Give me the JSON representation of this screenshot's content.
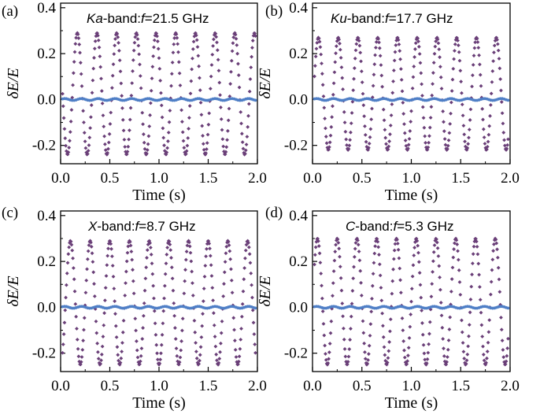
{
  "colors": {
    "oscillation": "#6a3f78",
    "baseline": "#4f7fc6"
  },
  "chart_data": [
    {
      "panel": "(a)",
      "type": "scatter",
      "title_prefix": "Ka",
      "title_band": "-band:",
      "title_var": "f",
      "title_value": "=21.5 GHz",
      "xlabel": "Time (s)",
      "ylabel": "δE/E",
      "xlim": [
        0,
        2.0
      ],
      "ylim": [
        -0.28,
        0.42
      ],
      "xticks": [
        "0.0",
        "0.5",
        "1.0",
        "1.5",
        "2.0"
      ],
      "yticks": [
        "-0.2",
        "0.0",
        "0.2",
        "0.4"
      ],
      "ytick_values": [
        -0.2,
        0.0,
        0.2,
        0.4
      ],
      "series": [
        {
          "kind": "oscillation",
          "amplitude_max": 0.29,
          "amplitude_min": -0.24,
          "period": 0.2,
          "first_peak": 0.17,
          "t_start": 0.02,
          "t_end": 1.98
        },
        {
          "kind": "baseline",
          "level": 0.0,
          "t_start": 0.02,
          "t_end": 1.98
        }
      ]
    },
    {
      "panel": "(b)",
      "type": "scatter",
      "title_prefix": "Ku",
      "title_band": "-band:",
      "title_var": "f",
      "title_value": "=17.7 GHz",
      "xlabel": "Time (s)",
      "ylabel": "δE/E",
      "xlim": [
        0,
        2.0
      ],
      "ylim": [
        -0.28,
        0.42
      ],
      "xticks": [
        "0.0",
        "0.5",
        "1.0",
        "1.5",
        "2.0"
      ],
      "yticks": [
        "-0.2",
        "0.0",
        "0.2",
        "0.4"
      ],
      "ytick_values": [
        -0.2,
        0.0,
        0.2,
        0.4
      ],
      "series": [
        {
          "kind": "oscillation",
          "amplitude_max": 0.27,
          "amplitude_min": -0.22,
          "period": 0.2,
          "first_peak": 0.06,
          "t_start": 0.02,
          "t_end": 1.98
        },
        {
          "kind": "baseline",
          "level": 0.0,
          "t_start": 0.02,
          "t_end": 1.98
        }
      ]
    },
    {
      "panel": "(c)",
      "type": "scatter",
      "title_prefix": "X",
      "title_band": "-band:",
      "title_var": "f",
      "title_value": "=8.7 GHz",
      "xlabel": "Time (s)",
      "ylabel": "δE/E",
      "xlim": [
        0,
        2.0
      ],
      "ylim": [
        -0.28,
        0.42
      ],
      "xticks": [
        "0.0",
        "0.5",
        "1.0",
        "1.5",
        "2.0"
      ],
      "yticks": [
        "-0.2",
        "0.0",
        "0.2",
        "0.4"
      ],
      "ytick_values": [
        -0.2,
        0.0,
        0.2,
        0.4
      ],
      "series": [
        {
          "kind": "oscillation",
          "amplitude_max": 0.29,
          "amplitude_min": -0.25,
          "period": 0.2,
          "first_peak": 0.1,
          "t_start": 0.02,
          "t_end": 1.98
        },
        {
          "kind": "baseline",
          "level": 0.0,
          "t_start": 0.02,
          "t_end": 1.98
        }
      ]
    },
    {
      "panel": "(d)",
      "type": "scatter",
      "title_prefix": "C",
      "title_band": "-band:",
      "title_var": "f",
      "title_value": "=5.3 GHz",
      "xlabel": "Time (s)",
      "ylabel": "δE/E",
      "xlim": [
        0,
        2.0
      ],
      "ylim": [
        -0.28,
        0.42
      ],
      "xticks": [
        "0.0",
        "0.5",
        "1.0",
        "1.5",
        "2.0"
      ],
      "yticks": [
        "-0.2",
        "0.0",
        "0.2",
        "0.4"
      ],
      "ytick_values": [
        -0.2,
        0.0,
        0.2,
        0.4
      ],
      "series": [
        {
          "kind": "oscillation",
          "amplitude_max": 0.3,
          "amplitude_min": -0.25,
          "period": 0.2,
          "first_peak": 0.05,
          "t_start": 0.02,
          "t_end": 1.98
        },
        {
          "kind": "baseline",
          "level": 0.0,
          "t_start": 0.02,
          "t_end": 1.98
        }
      ]
    }
  ]
}
